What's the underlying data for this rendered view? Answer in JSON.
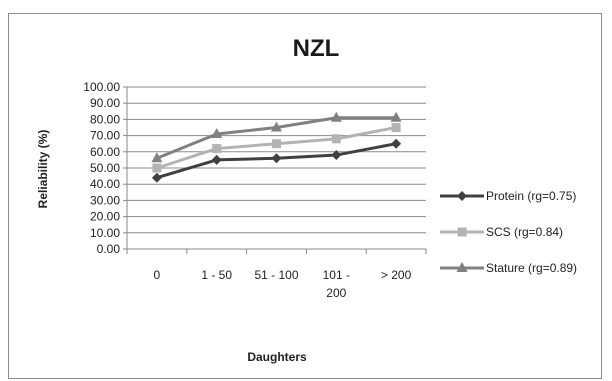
{
  "chart_data": {
    "type": "line",
    "title": "NZL",
    "xlabel": "Daughters",
    "ylabel": "Reliability (%)",
    "categories": [
      "0",
      "1 - 50",
      "51 - 100",
      "101 - 200",
      "> 200"
    ],
    "category_lines": [
      [
        "0"
      ],
      [
        "1 - 50"
      ],
      [
        "51 - 100"
      ],
      [
        "101 -",
        "200"
      ],
      [
        "> 200"
      ]
    ],
    "ylim": [
      0,
      100
    ],
    "yticks": [
      "0.00",
      "10.00",
      "20.00",
      "30.00",
      "40.00",
      "50.00",
      "60.00",
      "70.00",
      "80.00",
      "90.00",
      "100.00"
    ],
    "grid": true,
    "legend_position": "right",
    "series": [
      {
        "name": "Protein (rg=0.75)",
        "values": [
          44,
          55,
          56,
          58,
          65
        ],
        "color": "#404040",
        "marker": "diamond"
      },
      {
        "name": "SCS (rg=0.84)",
        "values": [
          50,
          62,
          65,
          68,
          75
        ],
        "color": "#b3b3b3",
        "marker": "square"
      },
      {
        "name": "Stature (rg=0.89)",
        "values": [
          56,
          71,
          75,
          81,
          81
        ],
        "color": "#808080",
        "marker": "triangle"
      }
    ]
  }
}
